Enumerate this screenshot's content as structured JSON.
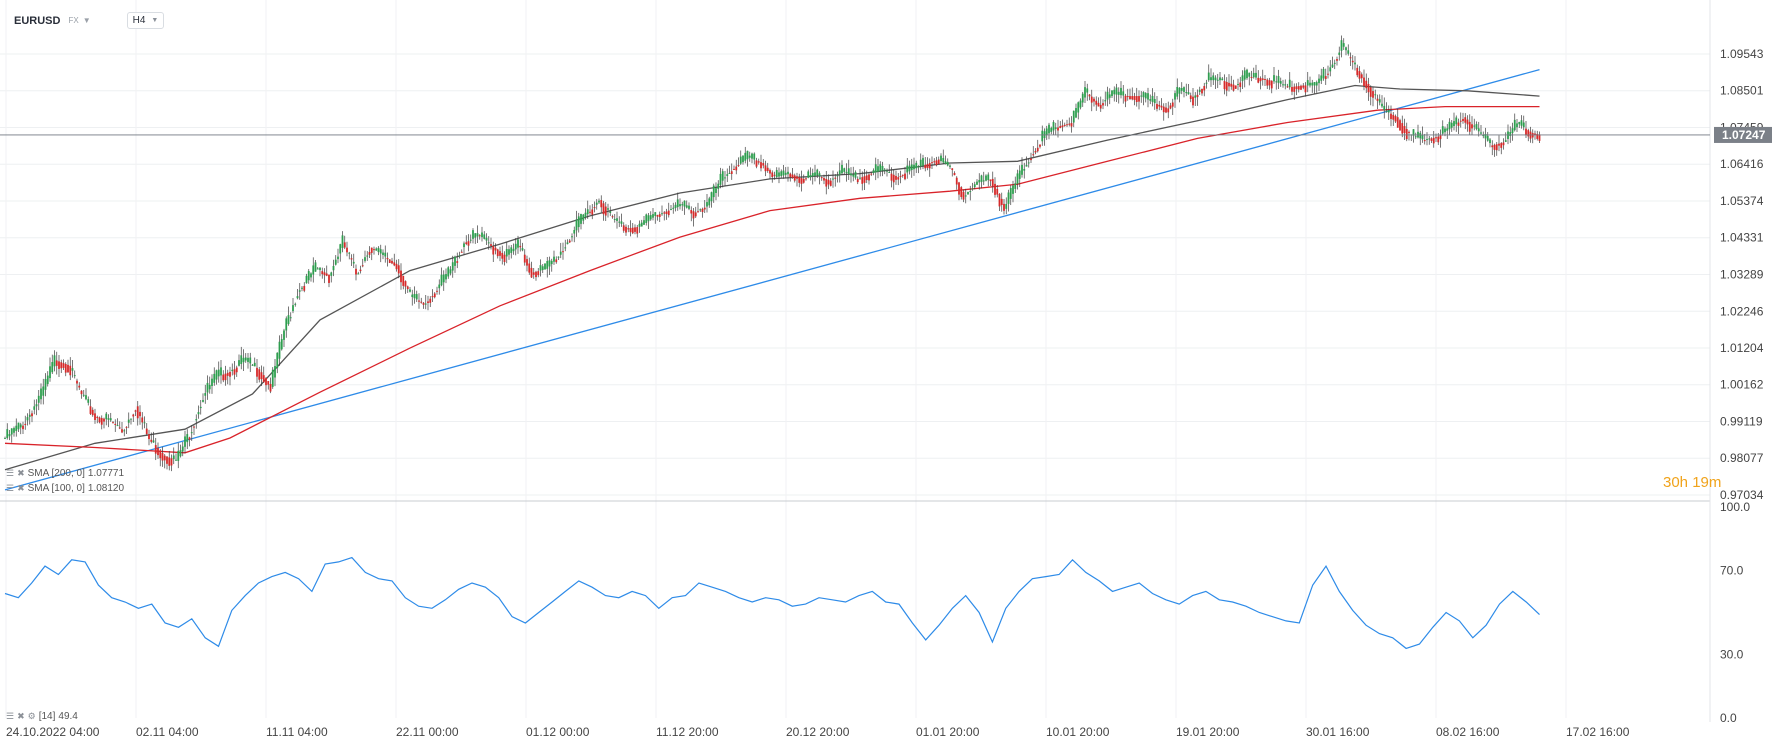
{
  "toolbar": {
    "symbol": "EURUSD",
    "market": "FX",
    "timeframe": "H4"
  },
  "legends": {
    "sma200": {
      "label": "SMA [200, 0]",
      "value": "1.07771"
    },
    "sma100": {
      "label": "SMA [100, 0]",
      "value": "1.08120"
    },
    "rsi": {
      "label": "[14]",
      "value": "49.4"
    }
  },
  "countdown": {
    "text": "30h 19m"
  },
  "icons": [
    "list-icon",
    "close-icon",
    "chart-settings-icon"
  ],
  "colors": {
    "up": "#2e9e4f",
    "down": "#d62a2a",
    "sma_gray": "#555555",
    "sma_red": "#d9232a",
    "trend": "#2e8be8",
    "rsi": "#2e8be8",
    "price_tag": "#7b8088"
  },
  "chart_data": [
    {
      "type": "candlestick",
      "symbol": "EURUSD",
      "timeframe": "H4",
      "price_ticks": [
        "1.09543",
        "1.08501",
        "1.07459",
        "1.06416",
        "1.05374",
        "1.04331",
        "1.03289",
        "1.02246",
        "1.01204",
        "1.00162",
        "0.99119",
        "0.98077",
        "0.97034"
      ],
      "current_price": "1.07247",
      "x_ticks": [
        "24.10.2022  04:00",
        "02.11  04:00",
        "11.11  04:00",
        "22.11  00:00",
        "01.12  00:00",
        "11.12  20:00",
        "20.12  20:00",
        "01.01  20:00",
        "10.01  20:00",
        "19.01  20:00",
        "30.01  16:00",
        "08.02  16:00",
        "17.02  16:00"
      ],
      "close_path": [
        [
          0,
          0.9865
        ],
        [
          8,
          0.9905
        ],
        [
          16,
          0.9985
        ],
        [
          22,
          1.0085
        ],
        [
          28,
          1.007
        ],
        [
          34,
          0.9985
        ],
        [
          40,
          0.9925
        ],
        [
          46,
          0.9915
        ],
        [
          52,
          0.9885
        ],
        [
          58,
          0.9955
        ],
        [
          64,
          0.986
        ],
        [
          70,
          0.9815
        ],
        [
          76,
          0.98
        ],
        [
          82,
          0.988
        ],
        [
          88,
          0.9985
        ],
        [
          94,
          1.004
        ],
        [
          100,
          1.0055
        ],
        [
          106,
          1.0085
        ],
        [
          112,
          1.006
        ],
        [
          118,
          1.001
        ],
        [
          124,
          1.017
        ],
        [
          130,
          1.028
        ],
        [
          138,
          1.0345
        ],
        [
          144,
          1.0325
        ],
        [
          150,
          1.042
        ],
        [
          156,
          1.033
        ],
        [
          162,
          1.0405
        ],
        [
          168,
          1.038
        ],
        [
          174,
          1.0355
        ],
        [
          180,
          1.0265
        ],
        [
          186,
          1.0245
        ],
        [
          192,
          1.029
        ],
        [
          198,
          1.034
        ],
        [
          204,
          1.042
        ],
        [
          210,
          1.044
        ],
        [
          216,
          1.041
        ],
        [
          222,
          1.038
        ],
        [
          228,
          1.041
        ],
        [
          234,
          1.0335
        ],
        [
          240,
          1.0345
        ],
        [
          246,
          1.0385
        ],
        [
          252,
          1.0445
        ],
        [
          258,
          1.05
        ],
        [
          264,
          1.054
        ],
        [
          270,
          1.0485
        ],
        [
          276,
          1.046
        ],
        [
          282,
          1.0465
        ],
        [
          288,
          1.0495
        ],
        [
          294,
          1.051
        ],
        [
          300,
          1.0525
        ],
        [
          306,
          1.0505
        ],
        [
          312,
          1.0525
        ],
        [
          318,
          1.0595
        ],
        [
          324,
          1.0635
        ],
        [
          330,
          1.066
        ],
        [
          336,
          1.0645
        ],
        [
          342,
          1.0605
        ],
        [
          348,
          1.0615
        ],
        [
          354,
          1.06
        ],
        [
          360,
          1.061
        ],
        [
          366,
          1.0595
        ],
        [
          372,
          1.062
        ],
        [
          378,
          1.06
        ],
        [
          384,
          1.0615
        ],
        [
          390,
          1.0625
        ],
        [
          396,
          1.0605
        ],
        [
          402,
          1.0625
        ],
        [
          408,
          1.064
        ],
        [
          414,
          1.0655
        ],
        [
          420,
          1.063
        ],
        [
          426,
          1.055
        ],
        [
          432,
          1.059
        ],
        [
          438,
          1.06
        ],
        [
          444,
          1.0515
        ],
        [
          450,
          1.06
        ],
        [
          456,
          1.067
        ],
        [
          462,
          1.0725
        ],
        [
          468,
          1.075
        ],
        [
          474,
          1.076
        ],
        [
          480,
          1.0845
        ],
        [
          486,
          1.081
        ],
        [
          492,
          1.084
        ],
        [
          498,
          1.0835
        ],
        [
          504,
          1.0835
        ],
        [
          510,
          1.0815
        ],
        [
          516,
          1.08
        ],
        [
          522,
          1.085
        ],
        [
          528,
          1.083
        ],
        [
          534,
          1.088
        ],
        [
          540,
          1.088
        ],
        [
          546,
          1.0865
        ],
        [
          552,
          1.089
        ],
        [
          558,
          1.0885
        ],
        [
          564,
          1.0875
        ],
        [
          570,
          1.086
        ],
        [
          576,
          1.0865
        ],
        [
          582,
          1.0865
        ],
        [
          588,
          1.0905
        ],
        [
          594,
          1.0975
        ],
        [
          600,
          1.0915
        ],
        [
          606,
          1.086
        ],
        [
          612,
          1.0795
        ],
        [
          618,
          1.0775
        ],
        [
          624,
          1.0725
        ],
        [
          630,
          1.071
        ],
        [
          636,
          1.072
        ],
        [
          642,
          1.0745
        ],
        [
          648,
          1.0775
        ],
        [
          654,
          1.0735
        ],
        [
          660,
          1.0695
        ],
        [
          666,
          1.0705
        ],
        [
          672,
          1.0755
        ],
        [
          678,
          1.073
        ],
        [
          682,
          1.0725
        ]
      ],
      "sma200_path": [
        [
          0,
          0.985
        ],
        [
          40,
          0.9838
        ],
        [
          80,
          0.9823
        ],
        [
          100,
          0.9865
        ],
        [
          140,
          0.9995
        ],
        [
          180,
          1.012
        ],
        [
          220,
          1.024
        ],
        [
          260,
          1.034
        ],
        [
          300,
          1.0435
        ],
        [
          340,
          1.051
        ],
        [
          380,
          1.0545
        ],
        [
          420,
          1.0565
        ],
        [
          450,
          1.0585
        ],
        [
          490,
          1.065
        ],
        [
          530,
          1.0715
        ],
        [
          570,
          1.076
        ],
        [
          610,
          1.0795
        ],
        [
          640,
          1.0805
        ],
        [
          682,
          1.0805
        ]
      ],
      "sma100_path": [
        [
          0,
          0.9775
        ],
        [
          40,
          0.985
        ],
        [
          80,
          0.989
        ],
        [
          110,
          0.999
        ],
        [
          140,
          1.02
        ],
        [
          180,
          1.034
        ],
        [
          220,
          1.0415
        ],
        [
          260,
          1.0495
        ],
        [
          300,
          1.056
        ],
        [
          340,
          1.06
        ],
        [
          380,
          1.0615
        ],
        [
          420,
          1.0645
        ],
        [
          450,
          1.065
        ],
        [
          490,
          1.071
        ],
        [
          530,
          1.0765
        ],
        [
          570,
          1.0825
        ],
        [
          600,
          1.0865
        ],
        [
          620,
          1.0855
        ],
        [
          650,
          1.085
        ],
        [
          682,
          1.0835
        ]
      ],
      "trendline": {
        "from": [
          0,
          0.9718
        ],
        "to": [
          682,
          1.091
        ]
      }
    },
    {
      "type": "line",
      "indicator": "RSI",
      "period": "14",
      "y_ticks": [
        "100.0",
        "70.0",
        "30.0",
        "0.0"
      ],
      "ylim": [
        0,
        100
      ],
      "series": [
        {
          "name": "[14]",
          "values": [
            59,
            57,
            64,
            72,
            68,
            75,
            74,
            63,
            57,
            55,
            52,
            54,
            45,
            43,
            47,
            38,
            34,
            51,
            58,
            64,
            67,
            69,
            66,
            60,
            73,
            74,
            76,
            69,
            66,
            65,
            57,
            53,
            52,
            56,
            61,
            64,
            62,
            57,
            48,
            45,
            50,
            55,
            60,
            65,
            62,
            58,
            57,
            60,
            58,
            52,
            57,
            58,
            64,
            62,
            60,
            57,
            55,
            57,
            56,
            53,
            54,
            57,
            56,
            55,
            58,
            60,
            55,
            54,
            45,
            37,
            44,
            52,
            58,
            50,
            36,
            52,
            60,
            66,
            67,
            68,
            75,
            69,
            65,
            60,
            62,
            64,
            59,
            56,
            54,
            58,
            60,
            56,
            55,
            53,
            50,
            48,
            46,
            45,
            63,
            72,
            60,
            51,
            44,
            40,
            38,
            33,
            35,
            43,
            50,
            46,
            38,
            44,
            54,
            60,
            55,
            49
          ]
        }
      ]
    }
  ]
}
